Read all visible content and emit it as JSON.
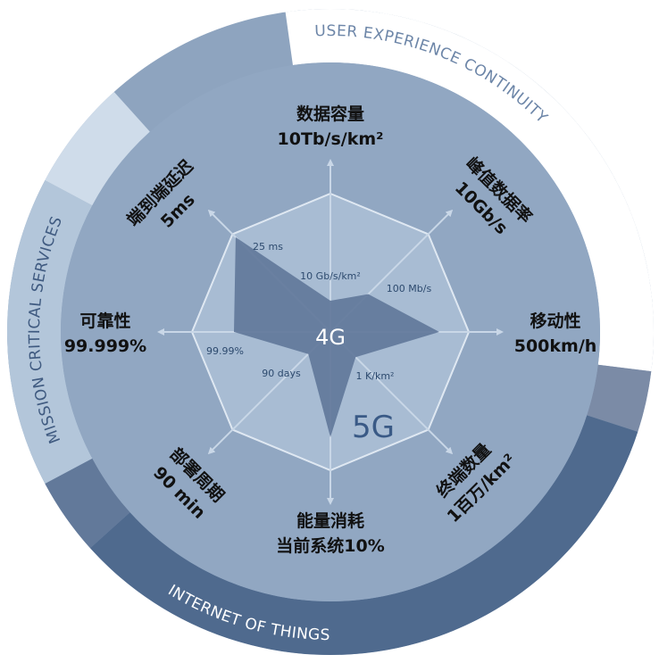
{
  "ring_labels": {
    "top": "USER EXPERIENCE CONTINUITY",
    "left": "MISSION CRITICAL SERVICES",
    "bottom": "INTERNET OF THINGS"
  },
  "axes": [
    {
      "name": "数据容量",
      "target": "10Tb/s/km²",
      "baseline": "10 Gb/s/km²"
    },
    {
      "name": "峰值数据率",
      "target": "10Gb/s",
      "baseline": "100 Mb/s"
    },
    {
      "name": "移动性",
      "target": "500km/h"
    },
    {
      "name": "终端数量",
      "target": "1百万/km²",
      "baseline": "1 K/km²"
    },
    {
      "name": "能量消耗",
      "target": "当前系统10%"
    },
    {
      "name": "部署周期",
      "target": "90 min",
      "baseline": "90 days"
    },
    {
      "name": "可靠性",
      "target": "99.999%",
      "baseline": "99.99%"
    },
    {
      "name": "端到端延迟",
      "target": "5ms",
      "baseline": "25 ms"
    }
  ],
  "center": {
    "old": "4G",
    "new": "5G"
  }
}
